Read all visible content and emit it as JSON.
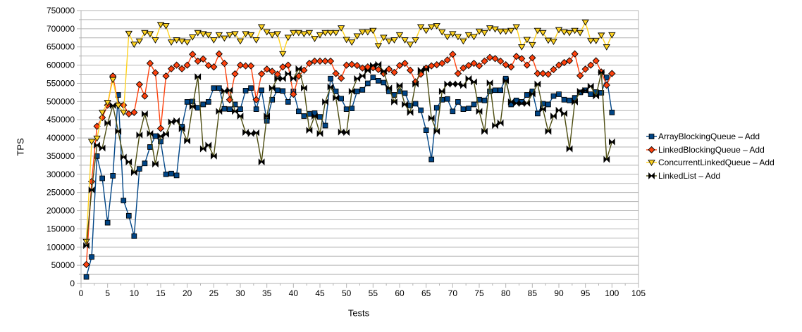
{
  "chart_data": {
    "type": "line",
    "title": "",
    "xlabel": "Tests",
    "ylabel": "TPS",
    "xlim": [
      0,
      105
    ],
    "ylim": [
      0,
      750000
    ],
    "x_major_step": 5,
    "x_minor_step": 2.5,
    "y_major_step": 50000,
    "y_minor_step": 25000,
    "grid": "horizontal-minor",
    "legend_position": "right",
    "background": "#ffffff",
    "gridline_color": "#b3b3b3",
    "axis_color": "#b3b3b3",
    "text_color": "#000000",
    "x_tick_labels": [
      "0",
      "5",
      "10",
      "15",
      "20",
      "25",
      "30",
      "35",
      "40",
      "45",
      "50",
      "55",
      "60",
      "65",
      "70",
      "75",
      "80",
      "85",
      "90",
      "95",
      "100",
      "105"
    ],
    "y_tick_labels": [
      "0",
      "50000",
      "100000",
      "150000",
      "200000",
      "250000",
      "300000",
      "350000",
      "400000",
      "450000",
      "500000",
      "550000",
      "600000",
      "650000",
      "700000",
      "750000"
    ],
    "x_start": 1,
    "series": [
      {
        "name": "ArrayBlockingQueue – Add",
        "color": "#004586",
        "marker": "square",
        "marker_fill": "#004586",
        "values": [
          18000,
          73000,
          350000,
          289000,
          167000,
          296000,
          518000,
          228000,
          186000,
          130000,
          315000,
          330000,
          375000,
          405000,
          390000,
          300000,
          302000,
          297000,
          431000,
          499000,
          500000,
          483000,
          492000,
          499000,
          537000,
          537000,
          480000,
          479000,
          492000,
          479000,
          530000,
          537000,
          479000,
          531000,
          447000,
          505000,
          531000,
          529000,
          499000,
          528000,
          473000,
          460000,
          466000,
          468000,
          458000,
          434000,
          563000,
          528000,
          508000,
          479000,
          481000,
          528000,
          532000,
          550000,
          566000,
          557000,
          552000,
          528000,
          518000,
          528000,
          523000,
          489000,
          494000,
          476000,
          421000,
          341000,
          483000,
          505000,
          507000,
          473000,
          499000,
          479000,
          481000,
          492000,
          505000,
          503000,
          528000,
          531000,
          531000,
          563000,
          492000,
          503000,
          499000,
          518000,
          528000,
          467000,
          494000,
          492000,
          515000,
          520000,
          505000,
          503000,
          510000,
          525000,
          531000,
          520000,
          526000,
          524000,
          566000,
          470000
        ]
      },
      {
        "name": "LinkedBlockingQueue – Add",
        "color": "#ff420e",
        "marker": "diamond",
        "marker_fill": "#ff420e",
        "values": [
          52000,
          280000,
          432000,
          456000,
          490000,
          570000,
          492000,
          490000,
          466000,
          470000,
          547000,
          515000,
          605000,
          579000,
          426000,
          570000,
          590000,
          600000,
          590000,
          600000,
          630000,
          611000,
          617000,
          599000,
          595000,
          631000,
          605000,
          505000,
          576000,
          600000,
          598000,
          598000,
          505000,
          576000,
          589000,
          583000,
          575000,
          595000,
          600000,
          520000,
          570000,
          586000,
          605000,
          611000,
          611000,
          611000,
          611000,
          577000,
          564000,
          600000,
          602000,
          599000,
          592000,
          595000,
          593000,
          588000,
          577000,
          589000,
          580000,
          599000,
          605000,
          586000,
          554000,
          575000,
          592000,
          598000,
          601000,
          605000,
          614000,
          630000,
          577000,
          592000,
          599000,
          605000,
          598000,
          611000,
          621000,
          618000,
          611000,
          601000,
          595000,
          624000,
          618000,
          600000,
          620000,
          577000,
          577000,
          575000,
          588000,
          600000,
          607000,
          612000,
          631000,
          571000,
          589000,
          600000,
          612000,
          581000,
          545000,
          577000
        ]
      },
      {
        "name": "ConcurrentLinkedQueue – Add",
        "color": "#ffd320",
        "marker": "triangle-down",
        "marker_fill": "#ffd320",
        "values": [
          115000,
          390000,
          399000,
          470000,
          497000,
          560000,
          489000,
          470000,
          687000,
          657000,
          666000,
          689000,
          686000,
          669000,
          711000,
          708000,
          663000,
          669000,
          666000,
          663000,
          677000,
          689000,
          686000,
          683000,
          669000,
          683000,
          674000,
          683000,
          686000,
          666000,
          686000,
          683000,
          669000,
          705000,
          691000,
          683000,
          686000,
          631000,
          676000,
          689000,
          689000,
          686000,
          689000,
          673000,
          683000,
          689000,
          689000,
          689000,
          702000,
          670000,
          663000,
          680000,
          691000,
          691000,
          695000,
          653000,
          676000,
          666000,
          669000,
          683000,
          669000,
          657000,
          669000,
          705000,
          695000,
          705000,
          708000,
          691000,
          678000,
          686000,
          678000,
          666000,
          683000,
          678000,
          693000,
          689000,
          702000,
          699000,
          693000,
          693000,
          695000,
          705000,
          650000,
          670000,
          656000,
          695000,
          689000,
          668000,
          665000,
          697000,
          691000,
          689000,
          695000,
          689000,
          718000,
          667000,
          667000,
          682000,
          650000,
          683000
        ]
      },
      {
        "name": "LinkedList – Add",
        "color": "#4c4c10",
        "marker": "bowtie",
        "marker_fill": "#000000",
        "values": [
          104000,
          257000,
          380000,
          372000,
          441000,
          489000,
          418000,
          347000,
          334000,
          305000,
          408000,
          466000,
          412000,
          328000,
          405000,
          410000,
          444000,
          447000,
          425000,
          392000,
          486000,
          568000,
          370000,
          380000,
          350000,
          473000,
          529000,
          531000,
          473000,
          460000,
          415000,
          412000,
          414000,
          334000,
          460000,
          537000,
          563000,
          563000,
          576000,
          563000,
          590000,
          537000,
          421000,
          460000,
          412000,
          499000,
          540000,
          510000,
          416000,
          415000,
          528000,
          563000,
          570000,
          585000,
          599000,
          602000,
          583000,
          537000,
          499000,
          544000,
          492000,
          470000,
          548000,
          586000,
          589000,
          454000,
          418000,
          528000,
          548000,
          548000,
          548000,
          544000,
          563000,
          554000,
          473000,
          418000,
          551000,
          434000,
          441000,
          557000,
          499000,
          495000,
          495000,
          495000,
          521000,
          548000,
          479000,
          418000,
          460000,
          476000,
          467000,
          370000,
          499000,
          528000,
          530000,
          542000,
          515000,
          580000,
          341000,
          389000
        ]
      }
    ]
  }
}
